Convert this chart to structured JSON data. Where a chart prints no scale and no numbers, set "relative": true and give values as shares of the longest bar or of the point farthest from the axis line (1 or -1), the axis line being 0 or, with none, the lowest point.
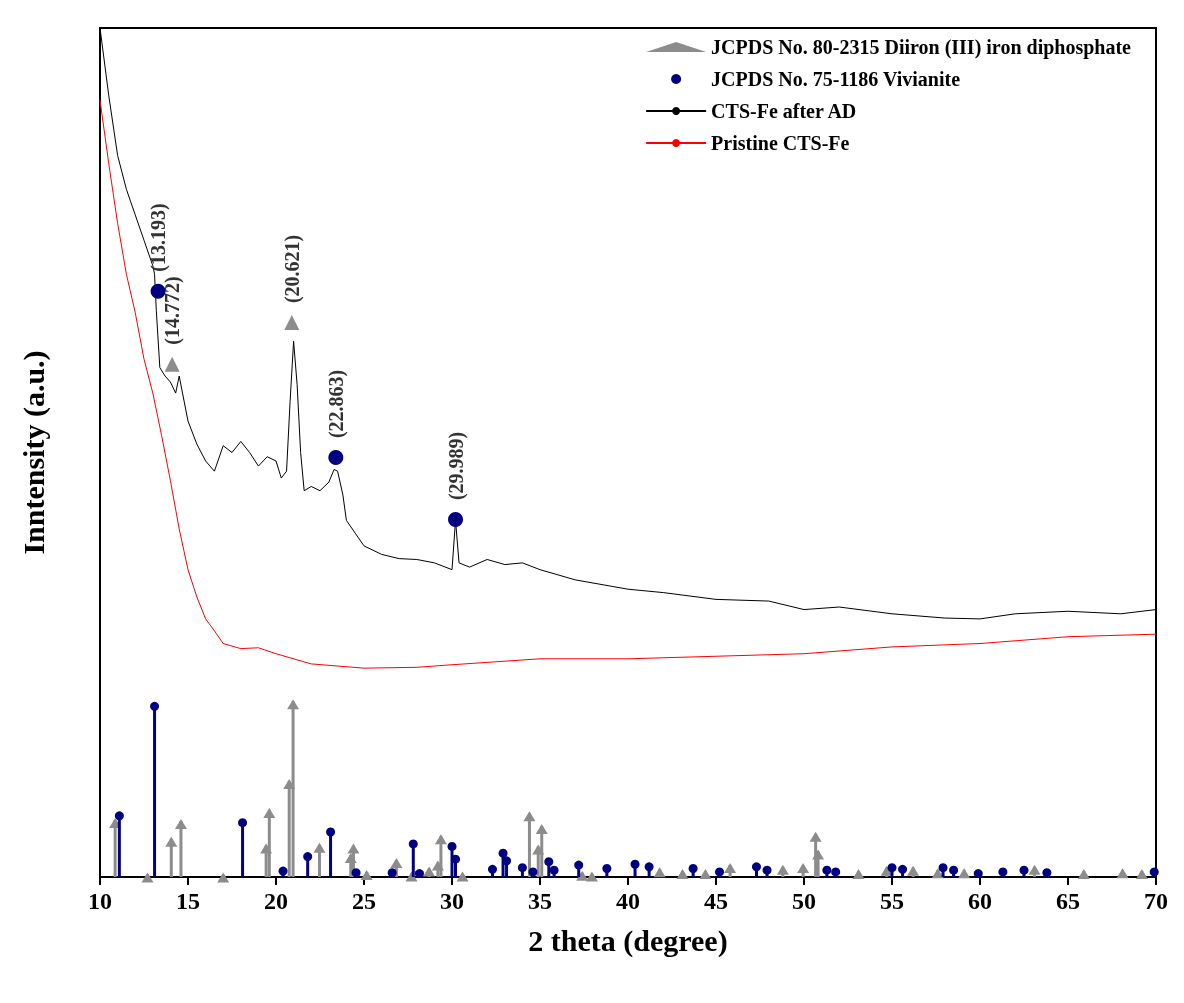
{
  "chart_data": {
    "type": "line",
    "relative": true,
    "xlabel": "2 theta (degree)",
    "ylabel": "Inntensity (a.u.)",
    "xlim": [
      10,
      70
    ],
    "xticks": [
      10,
      15,
      20,
      25,
      30,
      35,
      40,
      45,
      50,
      55,
      60,
      65,
      70
    ],
    "legend": "top right",
    "series": [
      {
        "name": "JCPDS No. 80-2315 Diiron (III) iron diphosphate",
        "type": "lollipop",
        "marker": "triangle",
        "color": "#8c8c8c",
        "x": [
          10.86,
          12.7,
          14.05,
          14.6,
          17.0,
          19.44,
          19.62,
          20.75,
          20.97,
          22.47,
          24.25,
          24.4,
          25.15,
          26.84,
          27.7,
          28.7,
          29.2,
          29.37,
          30.6,
          34.4,
          34.9,
          35.1,
          37.4,
          37.95,
          41.8,
          43.1,
          44.4,
          45.8,
          48.8,
          49.95,
          50.66,
          50.8,
          53.1,
          54.7,
          56.2,
          57.6,
          59.1,
          63.1,
          65.9,
          68.1,
          69.2
        ],
        "values": [
          0.067,
          0.003,
          0.045,
          0.066,
          0.003,
          0.037,
          0.079,
          0.113,
          0.207,
          0.038,
          0.026,
          0.037,
          0.006,
          0.02,
          0.004,
          0.01,
          0.017,
          0.048,
          0.004,
          0.075,
          0.036,
          0.06,
          0.005,
          0.004,
          0.009,
          0.007,
          0.007,
          0.014,
          0.012,
          0.014,
          0.051,
          0.03,
          0.007,
          0.011,
          0.011,
          0.008,
          0.008,
          0.012,
          0.007,
          0.008,
          0.007
        ]
      },
      {
        "name": "JCPDS No. 75-1186 Vivianite",
        "type": "lollipop",
        "marker": "circle",
        "color": "#000080",
        "x": [
          11.1,
          13.1,
          18.1,
          20.4,
          21.8,
          23.1,
          24.55,
          26.6,
          27.8,
          28.15,
          30.0,
          30.2,
          32.3,
          32.9,
          33.1,
          34.0,
          34.6,
          35.5,
          35.8,
          37.2,
          38.8,
          40.4,
          41.2,
          43.7,
          45.2,
          47.3,
          47.9,
          51.3,
          51.8,
          55.0,
          55.6,
          57.9,
          58.5,
          59.9,
          61.3,
          62.5,
          63.8,
          69.9
        ],
        "values": [
          0.072,
          0.201,
          0.064,
          0.007,
          0.024,
          0.053,
          0.005,
          0.005,
          0.039,
          0.004,
          0.036,
          0.021,
          0.009,
          0.028,
          0.019,
          0.011,
          0.006,
          0.018,
          0.008,
          0.014,
          0.01,
          0.015,
          0.012,
          0.01,
          0.006,
          0.012,
          0.008,
          0.008,
          0.006,
          0.011,
          0.009,
          0.011,
          0.008,
          0.004,
          0.006,
          0.008,
          0.005,
          0.006
        ]
      },
      {
        "name": "CTS-Fe after AD",
        "marker": "none",
        "color": "#000000",
        "x": [
          10,
          10.5,
          11,
          11.5,
          12,
          12.5,
          13,
          13.1,
          13.2,
          13.4,
          13.7,
          14,
          14.3,
          14.5,
          15,
          15.5,
          16,
          16.5,
          17,
          17.5,
          18,
          18.5,
          19,
          19.5,
          20,
          20.3,
          20.6,
          20.8,
          21.0,
          21.2,
          21.4,
          21.6,
          22,
          22.5,
          23,
          23.3,
          23.5,
          23.8,
          24,
          24.5,
          25,
          26,
          27,
          28,
          29,
          30,
          30.2,
          30.4,
          31,
          32,
          33,
          34,
          35,
          37,
          40,
          42,
          45,
          48,
          50,
          52,
          55,
          58,
          60,
          62,
          65,
          68,
          70
        ],
        "values": [
          1.0,
          0.92,
          0.85,
          0.81,
          0.78,
          0.75,
          0.72,
          0.71,
          0.667,
          0.6,
          0.59,
          0.583,
          0.57,
          0.59,
          0.537,
          0.51,
          0.49,
          0.478,
          0.508,
          0.5,
          0.513,
          0.5,
          0.484,
          0.495,
          0.49,
          0.47,
          0.478,
          0.56,
          0.631,
          0.58,
          0.5,
          0.455,
          0.46,
          0.455,
          0.465,
          0.48,
          0.478,
          0.45,
          0.42,
          0.405,
          0.39,
          0.38,
          0.375,
          0.374,
          0.37,
          0.362,
          0.42,
          0.37,
          0.365,
          0.374,
          0.368,
          0.37,
          0.362,
          0.35,
          0.339,
          0.335,
          0.327,
          0.325,
          0.315,
          0.318,
          0.31,
          0.305,
          0.304,
          0.31,
          0.313,
          0.31,
          0.315
        ]
      },
      {
        "name": "Pristine CTS-Fe",
        "marker": "none",
        "color": "#ff0000",
        "x": [
          10,
          10.5,
          11,
          11.5,
          12,
          12.5,
          13,
          13.5,
          14,
          14.5,
          15,
          15.5,
          16,
          16.5,
          17,
          18,
          19,
          20,
          22,
          25,
          28,
          30,
          35,
          40,
          45,
          50,
          55,
          60,
          65,
          70
        ],
        "values": [
          0.915,
          0.84,
          0.77,
          0.71,
          0.665,
          0.61,
          0.57,
          0.52,
          0.467,
          0.41,
          0.362,
          0.33,
          0.304,
          0.29,
          0.275,
          0.269,
          0.27,
          0.263,
          0.251,
          0.246,
          0.247,
          0.25,
          0.257,
          0.257,
          0.26,
          0.263,
          0.271,
          0.275,
          0.283,
          0.286
        ]
      }
    ],
    "annotations": [
      {
        "text": "(13.193)",
        "x": 13.3,
        "y": 0.69
      },
      {
        "text": "(14.772)",
        "x": 14.1,
        "y": 0.604
      },
      {
        "text": "(20.621)",
        "x": 20.9,
        "y": 0.653
      },
      {
        "text": "(22.863)",
        "x": 23.4,
        "y": 0.494
      },
      {
        "text": "(29.989)",
        "x": 30.2,
        "y": 0.421
      }
    ]
  }
}
